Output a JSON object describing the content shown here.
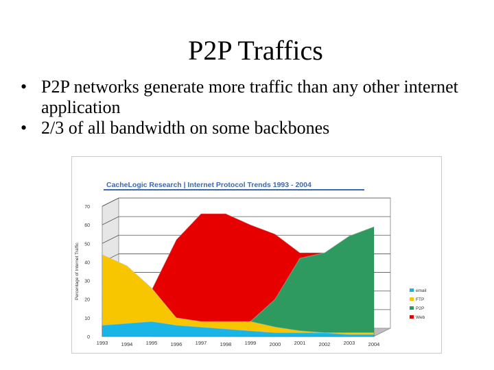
{
  "slide": {
    "title": "P2P Traffics",
    "bullets": [
      "P2P networks generate more traffic than any other internet application",
      "2/3 of all bandwidth on some backbones"
    ]
  },
  "chart_data": {
    "type": "area",
    "title": "CacheLogic Research | Internet Protocol Trends 1993 - 2004",
    "ylabel": "Percentage of Internet Traffic",
    "xlabel": "",
    "x_tick_labels": [
      "1993",
      "1994",
      "1995",
      "1996",
      "1997",
      "1998",
      "1999",
      "2000",
      "2001",
      "2002",
      "2003",
      "2004"
    ],
    "y_ticks": [
      0,
      10,
      20,
      30,
      40,
      50,
      60,
      70
    ],
    "ylim": [
      0,
      70
    ],
    "stacked": false,
    "grid": true,
    "legend_position": "right",
    "colors": {
      "email": "#19b5e6",
      "FTP": "#f7c600",
      "P2P": "#2f9a5f",
      "Web": "#e60000",
      "title_bar": "#3d68ad",
      "grid": "#555555"
    },
    "series": [
      {
        "name": "Web",
        "values": [
          null,
          null,
          25,
          52,
          66,
          66,
          60,
          55,
          45,
          45,
          45,
          35
        ]
      },
      {
        "name": "P2P",
        "values": [
          null,
          null,
          null,
          null,
          null,
          null,
          8,
          20,
          42,
          45,
          54,
          59
        ]
      },
      {
        "name": "FTP",
        "values": [
          44,
          38,
          26,
          10,
          8,
          8,
          8,
          5,
          3,
          2,
          2,
          2
        ]
      },
      {
        "name": "email",
        "values": [
          6,
          7,
          8,
          6,
          5,
          4,
          3,
          2,
          2,
          2,
          1,
          1
        ]
      }
    ],
    "legend": [
      "email",
      "FTP",
      "P2P",
      "Web"
    ]
  }
}
